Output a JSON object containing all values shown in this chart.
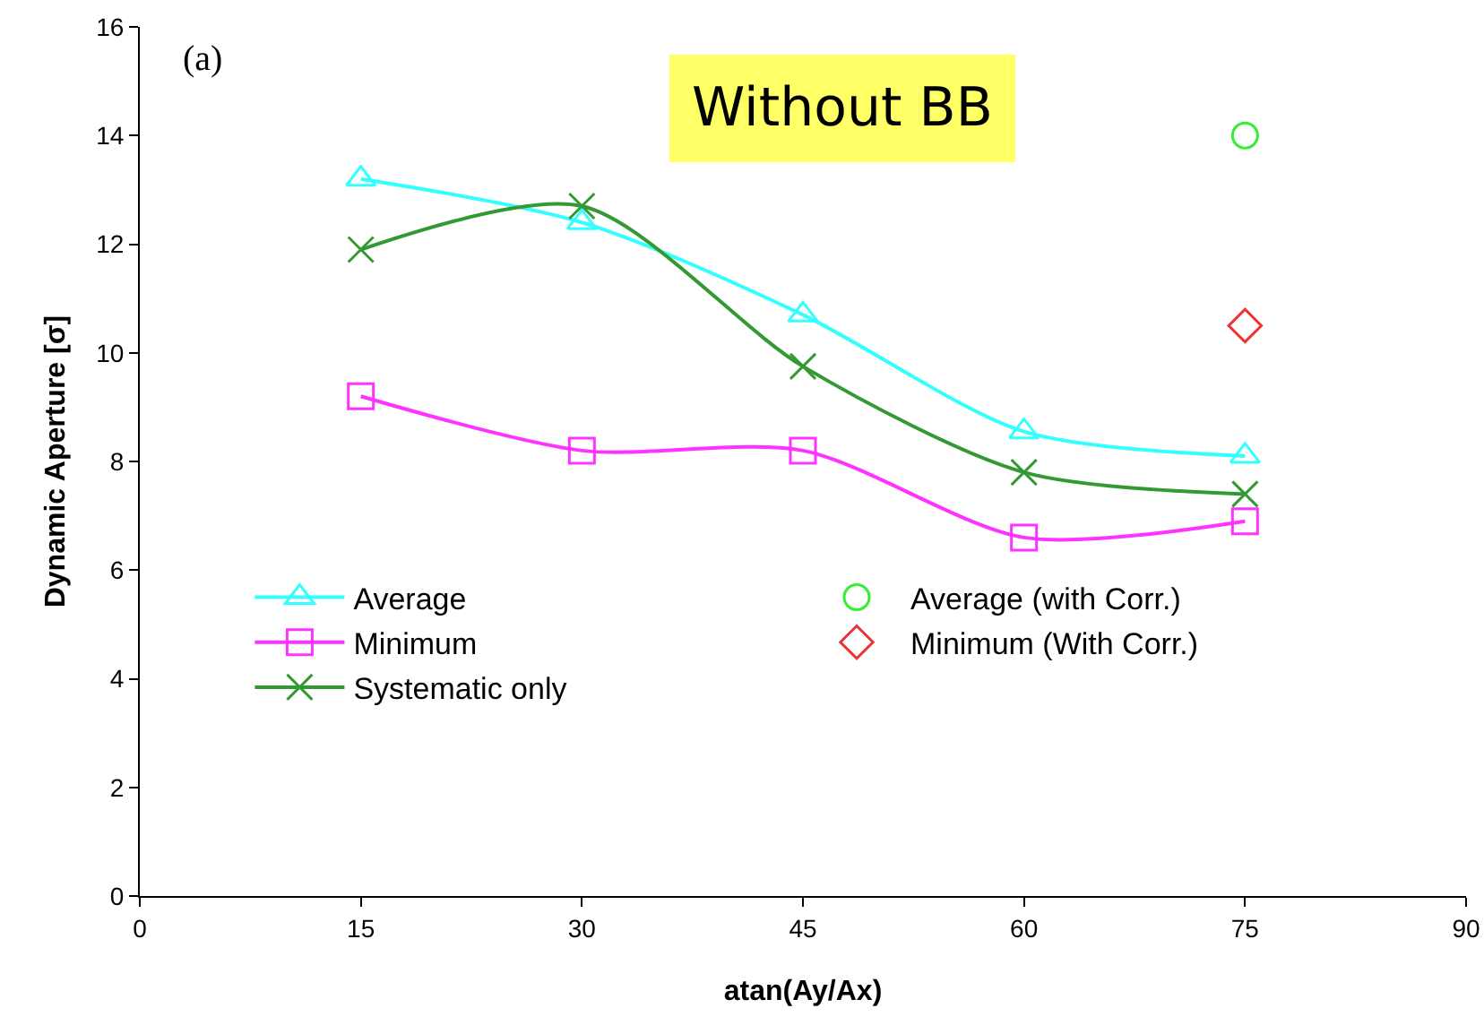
{
  "chart_data": {
    "type": "line",
    "title": "Without BB",
    "xlabel": "atan(Ay/Ax)",
    "ylabel": "Dynamic Aperture [σ]",
    "xlim": [
      0,
      90
    ],
    "xticks": [
      0,
      15,
      30,
      45,
      60,
      75,
      90
    ],
    "ylim": [
      0,
      16
    ],
    "yticks": [
      0,
      2,
      4,
      6,
      8,
      10,
      12,
      14,
      16
    ],
    "grid": false,
    "legend": "bottom left",
    "annotations": [
      "(a)"
    ],
    "series": [
      {
        "name": "Average",
        "color": "#33ffff",
        "marker": "triangle",
        "x": [
          15,
          30,
          45,
          60,
          75
        ],
        "values": [
          13.2,
          12.4,
          10.7,
          8.55,
          8.1
        ]
      },
      {
        "name": "Average (with Corr.)",
        "type": "scatter",
        "color": "#33ee33",
        "marker": "circle",
        "x": [
          75
        ],
        "values": [
          14.0
        ]
      },
      {
        "name": "Minimum",
        "color": "#ff33ff",
        "marker": "square",
        "x": [
          15,
          30,
          45,
          60,
          75
        ],
        "values": [
          9.2,
          8.2,
          8.2,
          6.6,
          6.9
        ]
      },
      {
        "name": "Minimum (With Corr.)",
        "type": "scatter",
        "color": "#ee3333",
        "marker": "diamond",
        "x": [
          75
        ],
        "values": [
          10.5
        ]
      },
      {
        "name": "Systematic only",
        "color": "#339933",
        "marker": "cross",
        "x": [
          15,
          30,
          45,
          60,
          75
        ],
        "values": [
          11.9,
          12.7,
          9.75,
          7.8,
          7.4
        ]
      }
    ]
  }
}
